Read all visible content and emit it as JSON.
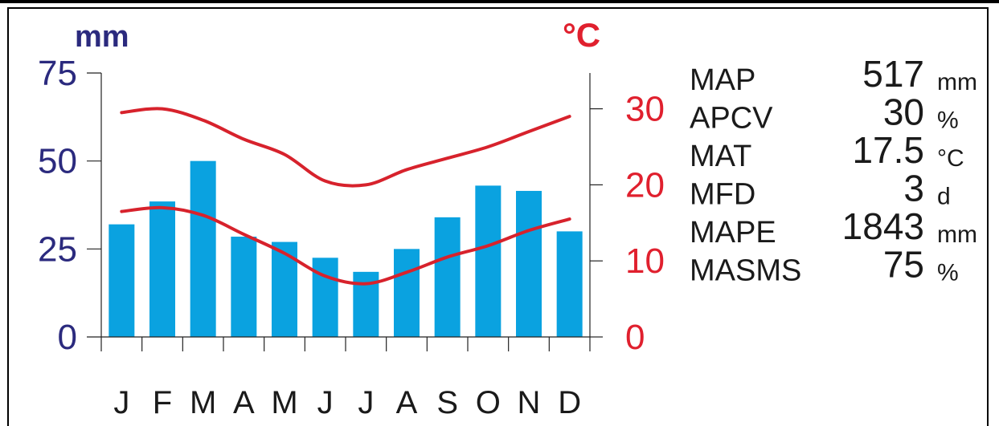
{
  "chart_data": {
    "type": "bar",
    "categories": [
      "J",
      "F",
      "M",
      "A",
      "M",
      "J",
      "J",
      "A",
      "S",
      "O",
      "N",
      "D"
    ],
    "left_axis": {
      "unit_label": "mm",
      "ticks": [
        0,
        25,
        50,
        75
      ],
      "ylim": [
        0,
        75
      ],
      "color": "#2b2a7e"
    },
    "right_axis": {
      "unit_label": "°C",
      "ticks": [
        0,
        10,
        20,
        30
      ],
      "ylim": [
        0,
        37
      ],
      "color": "#e0202e"
    },
    "series": [
      {
        "kind": "bar",
        "axis": "left",
        "color": "#0aa2e0",
        "values": [
          32,
          38.5,
          50,
          28.5,
          27,
          22.5,
          18.5,
          25,
          34,
          43,
          41.5,
          30
        ]
      },
      {
        "kind": "line",
        "axis": "right",
        "color": "#d7222c",
        "values": [
          29.5,
          30,
          28.5,
          26,
          24,
          20.5,
          20,
          22,
          23.5,
          25,
          27,
          29
        ]
      },
      {
        "kind": "line",
        "axis": "right",
        "color": "#d7222c",
        "values": [
          16.5,
          17,
          16,
          13.5,
          11,
          8,
          7,
          8.5,
          10.5,
          12,
          14,
          15.5
        ]
      }
    ],
    "grid": false,
    "legend": "none"
  },
  "stats": [
    {
      "name": "MAP",
      "value": "517",
      "unit": "mm"
    },
    {
      "name": "APCV",
      "value": "30",
      "unit": "%"
    },
    {
      "name": "MAT",
      "value": "17.5",
      "unit": "°C"
    },
    {
      "name": "MFD",
      "value": "3",
      "unit": "d"
    },
    {
      "name": "MAPE",
      "value": "1843",
      "unit": "mm"
    },
    {
      "name": "MASMS",
      "value": "75",
      "unit": "%"
    }
  ]
}
